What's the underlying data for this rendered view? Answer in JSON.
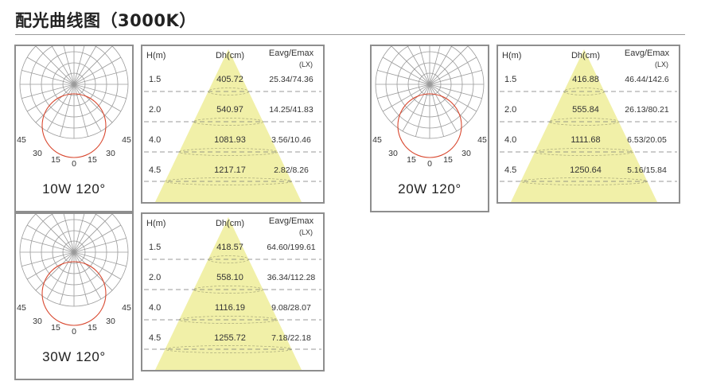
{
  "page": {
    "title": "配光曲线图（3000K）"
  },
  "colors": {
    "cone": "#f1f0a8",
    "curve": "#d9482f",
    "grid": "#9a9a9a",
    "border": "#8e8e8e"
  },
  "polar_tick_labels": [
    "45",
    "30",
    "15",
    "0",
    "15",
    "30",
    "45"
  ],
  "table_headers": {
    "height": "H(m)",
    "diameter": "Dh(cm)",
    "illum": "Eavg/Emax",
    "illum_unit": "(LX)"
  },
  "groups": [
    {
      "label": "10W 120°",
      "rows": [
        {
          "h": "1.5",
          "dh": "405.72",
          "e": "25.34/74.36"
        },
        {
          "h": "2.0",
          "dh": "540.97",
          "e": "14.25/41.83"
        },
        {
          "h": "4.0",
          "dh": "1081.93",
          "e": "3.56/10.46"
        },
        {
          "h": "4.5",
          "dh": "1217.17",
          "e": "2.82/8.26"
        }
      ]
    },
    {
      "label": "20W 120°",
      "rows": [
        {
          "h": "1.5",
          "dh": "416.88",
          "e": "46.44/142.6"
        },
        {
          "h": "2.0",
          "dh": "555.84",
          "e": "26.13/80.21"
        },
        {
          "h": "4.0",
          "dh": "1111.68",
          "e": "6.53/20.05"
        },
        {
          "h": "4.5",
          "dh": "1250.64",
          "e": "5.16/15.84"
        }
      ]
    },
    {
      "label": "30W 120°",
      "rows": [
        {
          "h": "1.5",
          "dh": "418.57",
          "e": "64.60/199.61"
        },
        {
          "h": "2.0",
          "dh": "558.10",
          "e": "36.34/112.28"
        },
        {
          "h": "4.0",
          "dh": "1116.19",
          "e": "9.08/28.07"
        },
        {
          "h": "4.5",
          "dh": "1255.72",
          "e": "7.18/22.18"
        }
      ]
    }
  ]
}
